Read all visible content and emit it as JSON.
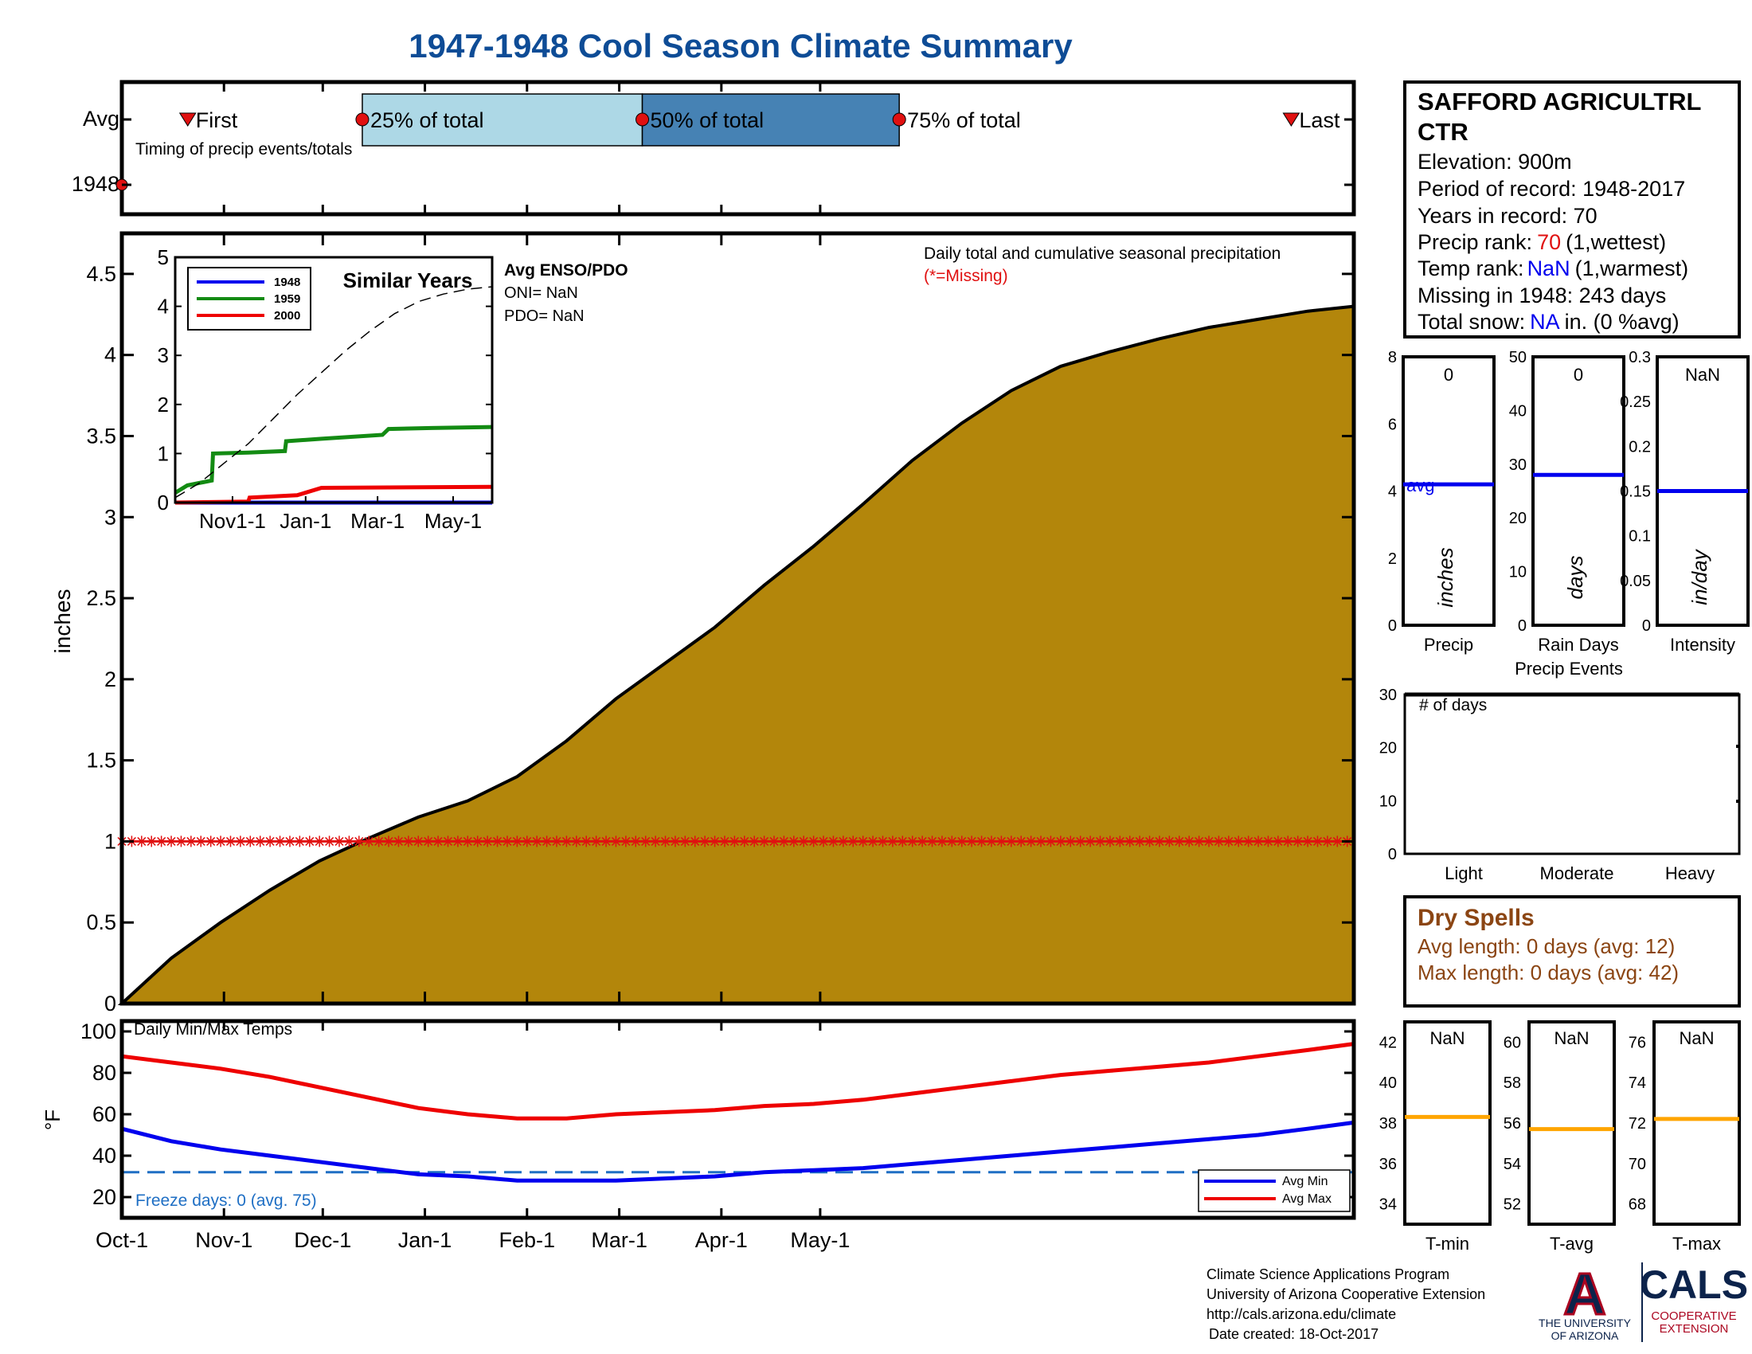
{
  "title": "1947-1948 Cool Season Climate Summary",
  "colors": {
    "title": "#0e4c96",
    "cum_fill": "#b3860b",
    "missing": "#e01010",
    "min": "#0000ee",
    "max": "#ee0000",
    "freeze": "#1f6fc4",
    "q1": "#add8e6",
    "q2": "#4682b4",
    "tavg": "#ffa500",
    "dry": "#8b4513",
    "green": "#138b13",
    "rank_red": "#e01010",
    "rank_blue": "#0000ee"
  },
  "timing": {
    "row_avg": "Avg",
    "row_year": "1948",
    "caption": "Timing of precip events/totals",
    "first": "First",
    "q25": "25% of total",
    "q50": "50% of total",
    "q75": "75% of total",
    "last": "Last",
    "positions_day": {
      "first": 20,
      "q25": 73,
      "q50": 158,
      "q75": 236,
      "last": 355,
      "year_point": 0
    }
  },
  "station": {
    "name": "SAFFORD AGRICULTRL CTR",
    "name_line1": "SAFFORD AGRICULTRL",
    "name_line2": "CTR",
    "elevation": "Elevation: 900m",
    "period": "Period of record: 1948-2017",
    "years": "Years in record: 70",
    "precip_rank_label": "Precip rank:",
    "precip_rank_value": "70",
    "precip_rank_note": "(1,wettest)",
    "temp_rank_label": "Temp rank:",
    "temp_rank_value": "NaN",
    "temp_rank_note": "(1,warmest)",
    "missing": "Missing in 1948: 243 days",
    "snow_label": "Total snow:",
    "snow_value": "NA",
    "snow_note": "in. (0 %avg)"
  },
  "main": {
    "ylabel": "inches",
    "note": "Daily total and cumulative seasonal precipitation",
    "missing_note": "(*=Missing)",
    "missing_level": 1,
    "y_ticks": [
      "0",
      "0.5",
      "1",
      "1.5",
      "2",
      "2.5",
      "3",
      "3.5",
      "4",
      "4.5"
    ]
  },
  "inset": {
    "title": "Similar Years",
    "legend": [
      "1948",
      "1959",
      "2000"
    ],
    "x_ticks": [
      "Nov1-1",
      "Jan-1",
      "Mar-1",
      "May-1"
    ],
    "y_ticks": [
      "0",
      "1",
      "2",
      "3",
      "4",
      "5"
    ],
    "enso_title": "Avg ENSO/PDO",
    "oni": "ONI= NaN",
    "pdo": "PDO= NaN"
  },
  "precip_panels": {
    "labels": [
      "Precip",
      "Rain Days",
      "Intensity"
    ],
    "group_label": "Precip Events",
    "values": [
      "0",
      "0",
      "NaN"
    ],
    "units": [
      "inches",
      "days",
      "in/day"
    ],
    "avg_text": "avg",
    "ticks": [
      [
        "0",
        "2",
        "4",
        "6",
        "8"
      ],
      [
        "0",
        "10",
        "20",
        "30",
        "40",
        "50"
      ],
      [
        "0",
        "0.05",
        "0.1",
        "0.15",
        "0.2",
        "0.25",
        "0.3"
      ]
    ],
    "avg_values": [
      4.2,
      28,
      0.15
    ]
  },
  "events": {
    "title": "# of days",
    "labels": [
      "Light",
      "Moderate",
      "Heavy"
    ],
    "y_ticks": [
      "0",
      "10",
      "20",
      "30"
    ]
  },
  "dry": {
    "title": "Dry Spells",
    "avg": "Avg length: 0 days (avg: 12)",
    "max": "Max length: 0 days (avg: 42)"
  },
  "temps": {
    "label": "Daily Min/Max Temps",
    "ylabel": "°F",
    "y_ticks": [
      "20",
      "40",
      "60",
      "80",
      "100"
    ],
    "freeze": "Freeze days: 0 (avg. 75)",
    "freeze_level": 32,
    "legend_min": "Avg Min",
    "legend_max": "Avg Max"
  },
  "temp_panels": {
    "labels": [
      "T-min",
      "T-avg",
      "T-max"
    ],
    "values": [
      "NaN",
      "NaN",
      "NaN"
    ],
    "ticks": [
      [
        "34",
        "36",
        "38",
        "40",
        "42"
      ],
      [
        "52",
        "54",
        "56",
        "58",
        "60"
      ],
      [
        "68",
        "70",
        "72",
        "74",
        "76"
      ]
    ],
    "avg_values": [
      38.3,
      55.7,
      72.2
    ]
  },
  "x_ticks": [
    "Oct-1",
    "Nov-1",
    "Dec-1",
    "Jan-1",
    "Feb-1",
    "Mar-1",
    "Apr-1",
    "May-1"
  ],
  "footer": {
    "line1": "Climate Science Applications Program",
    "line2": "University of Arizona Cooperative Extension",
    "line3": "http://cals.arizona.edu/climate",
    "line4": "Date created: 18-Oct-2017",
    "ua_letter": "A",
    "ua_line1": "THE UNIVERSITY",
    "ua_line2": "OF ARIZONA",
    "cals": "CALS",
    "cals_line1": "COOPERATIVE",
    "cals_line2": "EXTENSION"
  },
  "chart_data": {
    "type": "area",
    "title": "1947-1948 Cool Season Climate Summary",
    "xlabel": "",
    "ylabel": "inches",
    "x_ticks": [
      "Oct-1",
      "Nov-1",
      "Dec-1",
      "Jan-1",
      "Feb-1",
      "Mar-1",
      "Apr-1",
      "May-1"
    ],
    "ylim": [
      0,
      4.75
    ],
    "series": [
      {
        "name": "Cumulative precipitation",
        "x_day": [
          0,
          15,
          30,
          45,
          60,
          75,
          90,
          105,
          120,
          135,
          150,
          165,
          180,
          195,
          210,
          225,
          240,
          255,
          270,
          285,
          300,
          315,
          330,
          345,
          360,
          374
        ],
        "values": [
          0,
          0.28,
          0.5,
          0.7,
          0.88,
          1.02,
          1.15,
          1.25,
          1.4,
          1.62,
          1.88,
          2.1,
          2.32,
          2.58,
          2.82,
          3.08,
          3.35,
          3.58,
          3.78,
          3.93,
          4.02,
          4.1,
          4.17,
          4.22,
          4.27,
          4.3
        ]
      },
      {
        "name": "Missing",
        "value": 1,
        "marker": "*"
      }
    ],
    "temps": {
      "x_day": [
        0,
        15,
        30,
        45,
        60,
        75,
        90,
        105,
        120,
        135,
        150,
        165,
        180,
        195,
        210,
        225,
        240,
        255,
        270,
        285,
        300,
        315,
        330,
        345,
        360,
        374
      ],
      "avg_max": [
        88,
        85,
        82,
        78,
        73,
        68,
        63,
        60,
        58,
        58,
        60,
        61,
        62,
        64,
        65,
        67,
        70,
        73,
        76,
        79,
        81,
        83,
        85,
        88,
        91,
        94
      ],
      "avg_min": [
        53,
        47,
        43,
        40,
        37,
        34,
        31,
        30,
        28,
        28,
        28,
        29,
        30,
        32,
        33,
        34,
        36,
        38,
        40,
        42,
        44,
        46,
        48,
        50,
        53,
        56
      ],
      "freeze_level": 32,
      "ylim": [
        10,
        105
      ]
    },
    "inset": {
      "type": "line",
      "x_ticks": [
        "Nov1-1",
        "Jan-1",
        "Mar-1",
        "May-1"
      ],
      "ylim": [
        0,
        5
      ],
      "series": [
        {
          "name": "1948",
          "x_day": [
            0,
            260
          ],
          "values": [
            0,
            0
          ]
        },
        {
          "name": "1959",
          "x_day": [
            0,
            10,
            30,
            31,
            60,
            90,
            91,
            120,
            170,
            175,
            210,
            260
          ],
          "values": [
            0.2,
            0.35,
            0.45,
            1.0,
            1.02,
            1.05,
            1.25,
            1.3,
            1.38,
            1.5,
            1.52,
            1.54
          ]
        },
        {
          "name": "2000",
          "x_day": [
            0,
            60,
            61,
            100,
            120,
            260
          ],
          "values": [
            0,
            0.02,
            0.1,
            0.15,
            0.3,
            0.32
          ]
        },
        {
          "name": "Avg",
          "dash": true,
          "x_day": [
            0,
            20,
            40,
            60,
            80,
            100,
            120,
            140,
            160,
            180,
            200,
            220,
            240,
            260
          ],
          "values": [
            0.1,
            0.4,
            0.8,
            1.2,
            1.7,
            2.2,
            2.65,
            3.1,
            3.5,
            3.85,
            4.1,
            4.25,
            4.35,
            4.4
          ]
        }
      ]
    }
  }
}
